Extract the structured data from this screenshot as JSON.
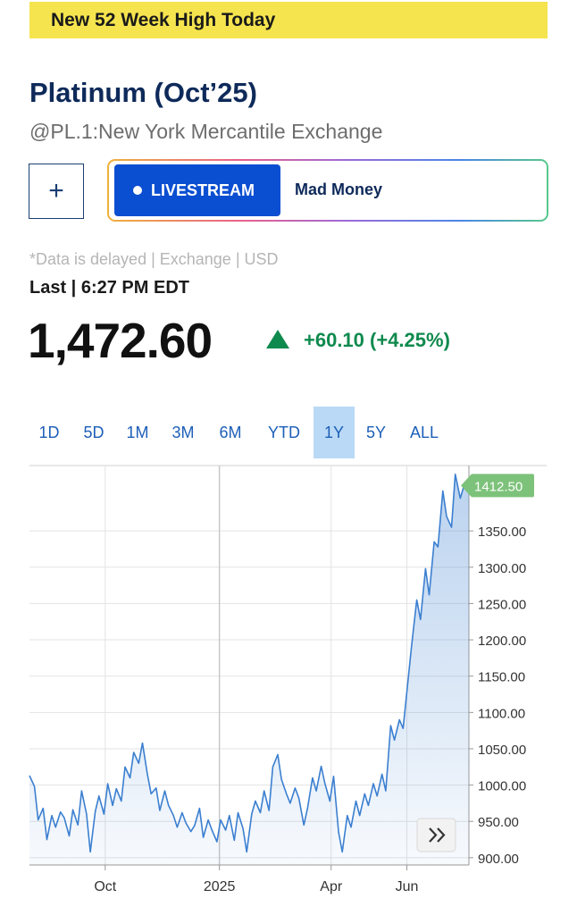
{
  "banner": {
    "text": "New 52 Week High Today"
  },
  "quote": {
    "title": "Platinum (Oct’25)",
    "subtitle": "@PL.1:New York Mercantile Exchange",
    "data_note": "*Data is delayed | Exchange | USD",
    "last_label": "Last | 6:27 PM EDT",
    "price": "1,472.60",
    "change": "+60.10 (+4.25%)"
  },
  "actions": {
    "add_symbol": "+",
    "livestream_label": "LIVESTREAM",
    "show_name": "Mad Money"
  },
  "range_tabs": [
    "1D",
    "5D",
    "1M",
    "3M",
    "6M",
    "YTD",
    "1Y",
    "5Y",
    "ALL"
  ],
  "active_range": "1Y",
  "colors": {
    "accent_blue": "#0a4ed1",
    "up_green": "#0f8a4e",
    "banner_yellow": "#f5e44e",
    "line_blue": "#3b7fd0",
    "last_tag": "#7dc27a"
  },
  "icons": {
    "expand": "double-chevron-right-icon",
    "up": "triangle-up-icon",
    "live": "dot-icon"
  },
  "chart_data": {
    "type": "line",
    "x_tick_labels": [
      "Oct",
      "2025",
      "Apr",
      "Jun"
    ],
    "y_tick_labels": [
      "900.00",
      "950.00",
      "1000.00",
      "1050.00",
      "1100.00",
      "1150.00",
      "1200.00",
      "1250.00",
      "1300.00",
      "1350.00"
    ],
    "ylim": [
      890,
      1440
    ],
    "last_value_label": "1412.50",
    "grid": true,
    "axis_side": "right",
    "series": [
      {
        "x": [
          "2024-08-01",
          "2024-08-05",
          "2024-08-08",
          "2024-08-12",
          "2024-08-15",
          "2024-08-19",
          "2024-08-22",
          "2024-08-26",
          "2024-08-29",
          "2024-09-02",
          "2024-09-05",
          "2024-09-09",
          "2024-09-12",
          "2024-09-16",
          "2024-09-19",
          "2024-09-23",
          "2024-09-26",
          "2024-09-30",
          "2024-10-03",
          "2024-10-07",
          "2024-10-10",
          "2024-10-14",
          "2024-10-17",
          "2024-10-21",
          "2024-10-24",
          "2024-10-28",
          "2024-10-31",
          "2024-11-04",
          "2024-11-07",
          "2024-11-11",
          "2024-11-14",
          "2024-11-18",
          "2024-11-21",
          "2024-11-25",
          "2024-11-28",
          "2024-12-02",
          "2024-12-05",
          "2024-12-09",
          "2024-12-12",
          "2024-12-16",
          "2024-12-19",
          "2024-12-23",
          "2024-12-26",
          "2024-12-30",
          "2025-01-02",
          "2025-01-06",
          "2025-01-09",
          "2025-01-13",
          "2025-01-16",
          "2025-01-20",
          "2025-01-23",
          "2025-01-27",
          "2025-01-30",
          "2025-02-03",
          "2025-02-06",
          "2025-02-10",
          "2025-02-13",
          "2025-02-17",
          "2025-02-20",
          "2025-02-24",
          "2025-02-27",
          "2025-03-03",
          "2025-03-06",
          "2025-03-10",
          "2025-03-13",
          "2025-03-17",
          "2025-03-20",
          "2025-03-24",
          "2025-03-27",
          "2025-03-31",
          "2025-04-03",
          "2025-04-07",
          "2025-04-10",
          "2025-04-14",
          "2025-04-17",
          "2025-04-21",
          "2025-04-24",
          "2025-04-28",
          "2025-05-01",
          "2025-05-05",
          "2025-05-08",
          "2025-05-12",
          "2025-05-15",
          "2025-05-19",
          "2025-05-22",
          "2025-05-26",
          "2025-05-29",
          "2025-06-02",
          "2025-06-05",
          "2025-06-09",
          "2025-06-12",
          "2025-06-16",
          "2025-06-19",
          "2025-06-23",
          "2025-06-26",
          "2025-06-30",
          "2025-07-03",
          "2025-07-07",
          "2025-07-10",
          "2025-07-14",
          "2025-07-17",
          "2025-07-21"
        ],
        "values": [
          1013,
          998,
          952,
          968,
          925,
          958,
          942,
          963,
          955,
          930,
          966,
          945,
          992,
          960,
          908,
          964,
          985,
          960,
          1002,
          972,
          995,
          978,
          1025,
          1010,
          1045,
          1030,
          1058,
          1015,
          988,
          996,
          965,
          992,
          972,
          958,
          942,
          962,
          948,
          936,
          944,
          968,
          928,
          952,
          938,
          922,
          952,
          938,
          958,
          924,
          962,
          940,
          908,
          960,
          978,
          962,
          992,
          965,
          1025,
          1042,
          1008,
          988,
          975,
          996,
          982,
          945,
          968,
          1010,
          992,
          1026,
          1002,
          978,
          1012,
          935,
          908,
          958,
          942,
          978,
          958,
          988,
          972,
          1002,
          985,
          1015,
          992,
          1082,
          1062,
          1090,
          1078,
          1145,
          1195,
          1255,
          1228,
          1298,
          1262,
          1335,
          1328,
          1405,
          1370,
          1355,
          1428,
          1395,
          1412,
          1412.5
        ]
      }
    ]
  }
}
